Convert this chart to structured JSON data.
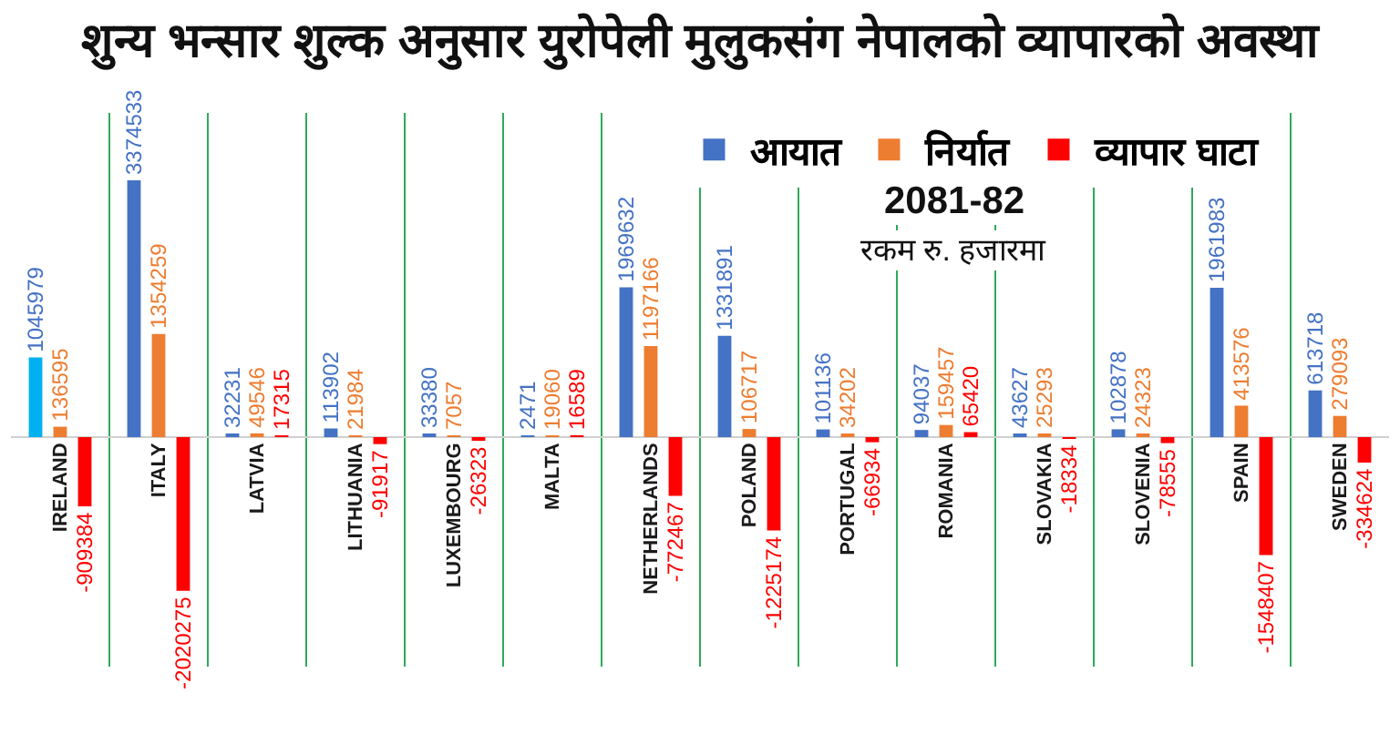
{
  "chart_data": {
    "type": "bar",
    "title": "शुन्य भन्सार शुल्क अनुसार युरोपेली मुलुकसंग नेपालको व्यापारको अवस्था",
    "categories": [
      "IRELAND",
      "ITALY",
      "LATVIA",
      "LITHUANIA",
      "LUXEMBOURG",
      "MALTA",
      "NETHERLANDS",
      "POLAND",
      "PORTUGAL",
      "ROMANIA",
      "SLOVAKIA",
      "SLOVENIA",
      "SPAIN",
      "SWEDEN"
    ],
    "series": [
      {
        "name": "आयात",
        "color": "#4472c4",
        "colors": [
          "#00b0f0",
          "#4472c4",
          "#4472c4",
          "#4472c4",
          "#4472c4",
          "#4472c4",
          "#4472c4",
          "#4472c4",
          "#4472c4",
          "#4472c4",
          "#4472c4",
          "#4472c4",
          "#4472c4",
          "#4472c4"
        ],
        "values": [
          1045979,
          3374533,
          32231,
          113902,
          33380,
          2471,
          1969632,
          1331891,
          101136,
          94037,
          43627,
          102878,
          1961983,
          613718
        ]
      },
      {
        "name": "निर्यात",
        "color": "#ed7d31",
        "values": [
          136595,
          1354259,
          49546,
          21984,
          7057,
          19060,
          1197166,
          106717,
          34202,
          159457,
          25293,
          24323,
          413576,
          279093
        ]
      },
      {
        "name": "व्यापार घाटा",
        "color": "#ff0000",
        "values": [
          -909384,
          -2020275,
          17315,
          -91917,
          -26323,
          16589,
          -772467,
          -1225174,
          -66934,
          65420,
          -18334,
          -78555,
          -1548407,
          -334624
        ]
      }
    ],
    "annotations": [
      "2081-82",
      "रकम रु. हजारमा"
    ],
    "data_labels": true,
    "grid": "x",
    "legend": "top right",
    "tick_labels": "x"
  }
}
